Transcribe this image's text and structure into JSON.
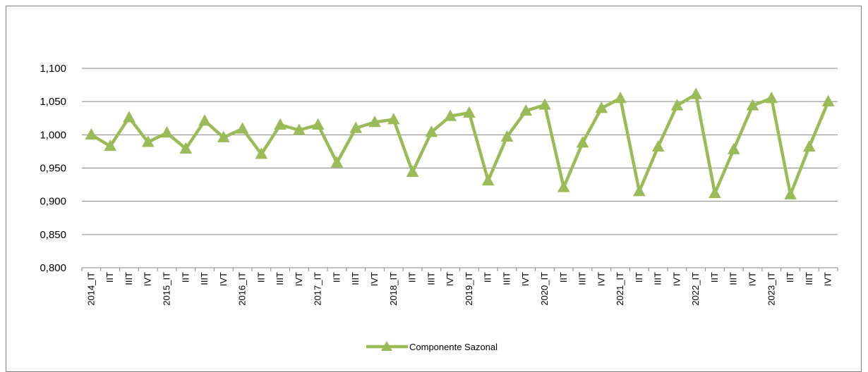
{
  "chart_data": {
    "type": "line",
    "title": "",
    "xlabel": "",
    "ylabel": "",
    "ylim": [
      0.8,
      1.1
    ],
    "yticks": [
      "0,800",
      "0,850",
      "0,900",
      "0,950",
      "1,000",
      "1,050",
      "1,100"
    ],
    "grid": true,
    "legend_position": "bottom",
    "categories": [
      "2014_IT",
      "IIT",
      "IIIT",
      "IVT",
      "2015_IT",
      "IIT",
      "IIIT",
      "IVT",
      "2016_IT",
      "IIT",
      "IIIT",
      "IVT",
      "2017_IT",
      "IIT",
      "IIIT",
      "IVT",
      "2018_IT",
      "IIT",
      "IIIT",
      "IVT",
      "2019_IT",
      "IIT",
      "IIIT",
      "IVT",
      "2020_IT",
      "IIT",
      "IIIT",
      "IVT",
      "2021_IT",
      "IIT",
      "IIIT",
      "IVT",
      "2022_IT",
      "IIT",
      "IIIT",
      "IVT",
      "2023_IT",
      "IIT",
      "IIIT",
      "IVT"
    ],
    "series": [
      {
        "name": "Componente Sazonal",
        "color": "#9bbb59",
        "marker": "triangle",
        "values": [
          1.0,
          0.983,
          1.026,
          0.989,
          1.003,
          0.979,
          1.021,
          0.996,
          1.009,
          0.971,
          1.015,
          1.007,
          1.015,
          0.958,
          1.01,
          1.019,
          1.023,
          0.944,
          1.004,
          1.028,
          1.033,
          0.931,
          0.997,
          1.036,
          1.045,
          0.921,
          0.988,
          1.04,
          1.055,
          0.915,
          0.982,
          1.044,
          1.061,
          0.912,
          0.978,
          1.044,
          1.055,
          0.91,
          0.982,
          1.05
        ]
      }
    ]
  }
}
